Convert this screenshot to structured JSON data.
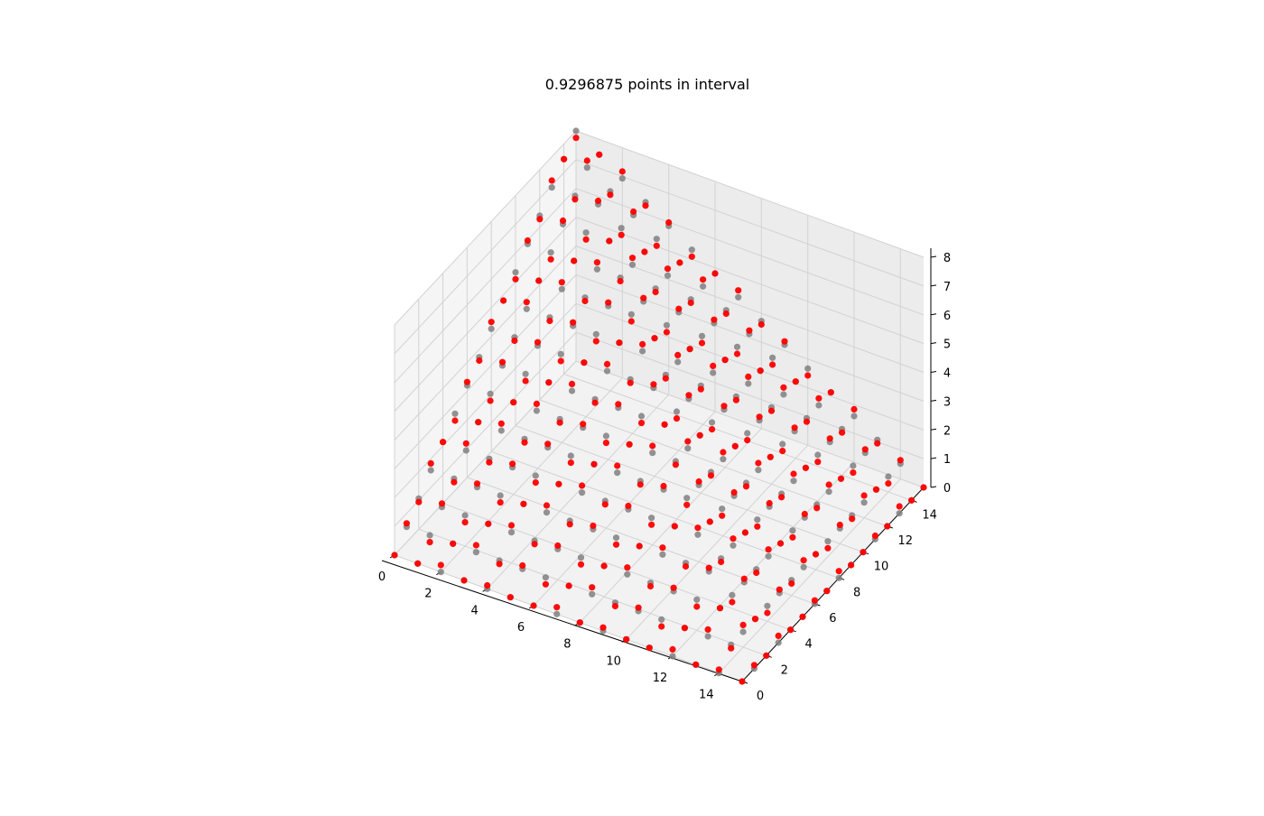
{
  "figure": {
    "title": "0.9296875 points in interval"
  },
  "chart_data": {
    "type": "scatter",
    "projection": "3d",
    "title": "0.9296875 points in interval",
    "grid": true,
    "xlim": [
      0,
      15
    ],
    "ylim": [
      0,
      15
    ],
    "zlim": [
      0,
      8
    ],
    "x_ticks": [
      0,
      2,
      4,
      6,
      8,
      10,
      12,
      14
    ],
    "y_ticks": [
      0,
      2,
      4,
      6,
      8,
      10,
      12,
      14
    ],
    "z_ticks": [
      0,
      1,
      2,
      3,
      4,
      5,
      6,
      7,
      8
    ],
    "grid_x": [
      0,
      1,
      2,
      3,
      4,
      5,
      6,
      7,
      8,
      9,
      10,
      11,
      12,
      13,
      14,
      15
    ],
    "grid_y": [
      0,
      1,
      2,
      3,
      4,
      5,
      6,
      7,
      8,
      9,
      10,
      11,
      12,
      13,
      14,
      15
    ],
    "surface": {
      "description": "gray points z = f(x, y), red points shifted copies; both roughly pyramid-shaped with peak near x=0, y=15",
      "peak": 8,
      "peak_x": 0,
      "peak_y": 15
    },
    "series": [
      {
        "name": "",
        "color": "#808080",
        "role": "reference surface"
      },
      {
        "name": "",
        "color": "#ff0000",
        "role": "predicted surface"
      }
    ],
    "fraction_in_interval": 0.9296875
  }
}
